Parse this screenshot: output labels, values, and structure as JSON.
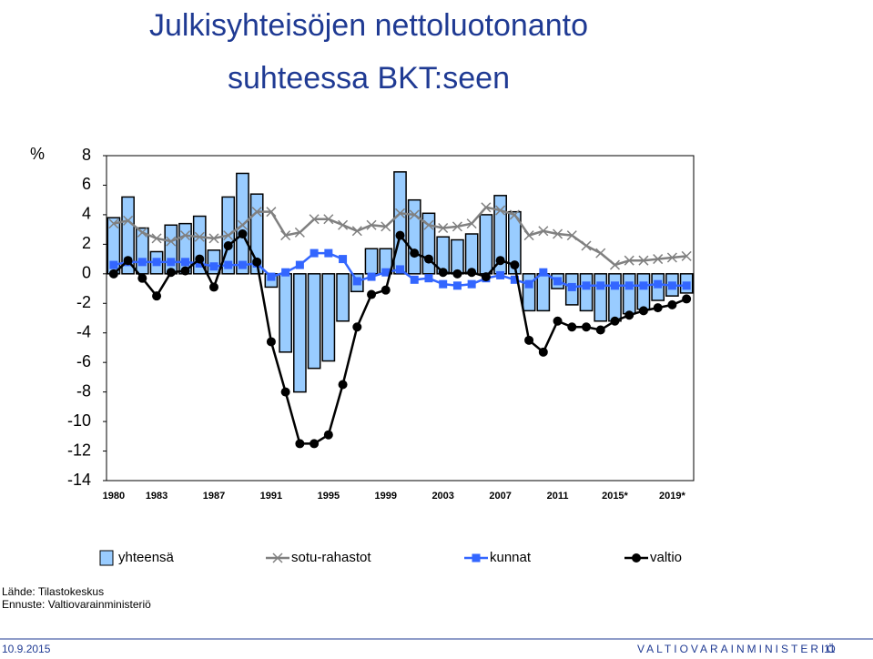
{
  "chart_data": {
    "type": "bar",
    "title_lines": [
      "Julkisyhteisöjen nettoluotonanto",
      "suhteessa BKT:seen"
    ],
    "y_label": "%",
    "categories": [
      "1980",
      null,
      null,
      "1983",
      null,
      null,
      null,
      "1987",
      null,
      null,
      null,
      "1991",
      null,
      null,
      null,
      "1995",
      null,
      null,
      null,
      "1999",
      null,
      null,
      null,
      "2003",
      null,
      null,
      null,
      "2007",
      null,
      null,
      null,
      "2011",
      null,
      null,
      null,
      "2015*",
      null,
      null,
      null,
      "2019*",
      null
    ],
    "ylim": [
      -14,
      8
    ],
    "yticks": [
      8,
      6,
      4,
      2,
      0,
      -2,
      -4,
      -6,
      -8,
      -10,
      -12,
      -14
    ],
    "series": [
      {
        "name": "yhteensä",
        "type": "bar",
        "color": "#99ccff",
        "values": [
          3.8,
          5.2,
          3.1,
          1.5,
          3.3,
          3.4,
          3.9,
          1.6,
          5.2,
          6.8,
          5.4,
          -0.9,
          -5.3,
          -8.0,
          -6.4,
          -5.9,
          -3.2,
          -1.2,
          1.7,
          1.7,
          6.9,
          5.0,
          4.1,
          2.5,
          2.3,
          2.7,
          4.0,
          5.3,
          4.2,
          -2.5,
          -2.5,
          -1.0,
          -2.1,
          -2.5,
          -3.2,
          -3.2,
          -2.7,
          -2.4,
          -1.8,
          -1.5,
          -1.3
        ]
      },
      {
        "name": "sotu-rahastot",
        "type": "line",
        "marker": "x",
        "color": "#808080",
        "values": [
          3.4,
          3.6,
          2.8,
          2.4,
          2.2,
          2.6,
          2.5,
          2.4,
          2.6,
          3.3,
          4.2,
          4.2,
          2.6,
          2.8,
          3.7,
          3.7,
          3.3,
          2.9,
          3.3,
          3.2,
          4.1,
          4.0,
          3.3,
          3.1,
          3.2,
          3.4,
          4.5,
          4.3,
          4.0,
          2.6,
          2.9,
          2.7,
          2.6,
          1.9,
          1.4,
          0.6,
          0.9,
          0.9,
          1.0,
          1.1,
          1.2
        ]
      },
      {
        "name": "kunnat",
        "type": "line",
        "marker": "square",
        "color": "#3366ff",
        "values": [
          0.6,
          0.8,
          0.8,
          0.8,
          0.8,
          0.8,
          0.7,
          0.5,
          0.6,
          0.6,
          0.7,
          -0.2,
          0.1,
          0.6,
          1.4,
          1.4,
          1.0,
          -0.5,
          -0.2,
          0.1,
          0.3,
          -0.4,
          -0.3,
          -0.7,
          -0.8,
          -0.7,
          -0.3,
          -0.1,
          -0.4,
          -0.7,
          0.1,
          -0.5,
          -0.9,
          -0.8,
          -0.8,
          -0.8,
          -0.8,
          -0.8,
          -0.7,
          -0.8,
          -0.8
        ]
      },
      {
        "name": "valtio",
        "type": "line",
        "marker": "circle",
        "color": "#000000",
        "values": [
          0.0,
          0.9,
          -0.3,
          -1.5,
          0.1,
          0.2,
          1.0,
          -0.9,
          1.9,
          2.7,
          0.8,
          -4.6,
          -8.0,
          -11.5,
          -11.5,
          -10.9,
          -7.5,
          -3.6,
          -1.4,
          -1.1,
          2.6,
          1.4,
          1.0,
          0.1,
          0.0,
          0.1,
          -0.2,
          0.9,
          0.6,
          -4.5,
          -5.3,
          -3.2,
          -3.6,
          -3.6,
          -3.8,
          -3.2,
          -2.8,
          -2.5,
          -2.3,
          -2.1,
          -1.7
        ]
      }
    ]
  },
  "source_lines": [
    "Lähde: Tilastokeskus",
    "Ennuste: Valtiovarainministeriö"
  ],
  "footer": {
    "date": "10.9.2015",
    "ministry": "VALTIOVARAINMINISTERIÖ",
    "page": "11"
  }
}
